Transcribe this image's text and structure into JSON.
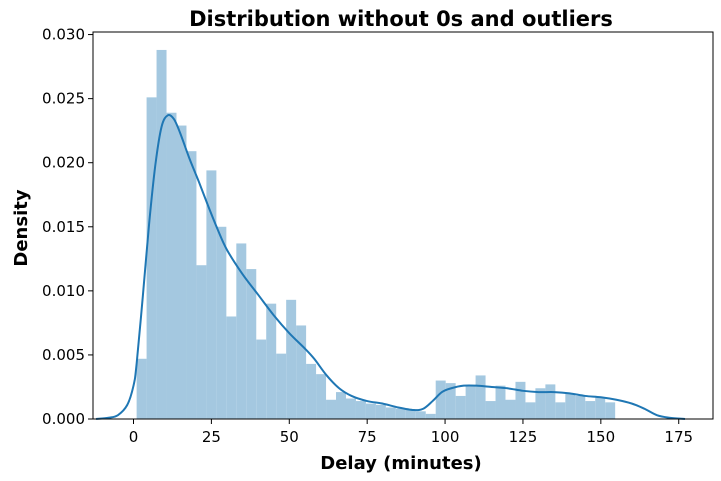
{
  "chart_data": {
    "type": "bar",
    "title": "Distribution without 0s and outliers",
    "xlabel": "Delay (minutes)",
    "ylabel": "Density",
    "xlim": [
      -13,
      186
    ],
    "ylim": [
      0,
      0.0302
    ],
    "x_ticks": [
      0,
      25,
      50,
      75,
      100,
      125,
      150,
      175
    ],
    "x_tick_labels": [
      "0",
      "25",
      "50",
      "75",
      "100",
      "125",
      "150",
      "175"
    ],
    "y_ticks": [
      0.0,
      0.005,
      0.01,
      0.015,
      0.02,
      0.025,
      0.03
    ],
    "y_tick_labels": [
      "0.000",
      "0.005",
      "0.010",
      "0.015",
      "0.020",
      "0.025",
      "0.030"
    ],
    "grid": false,
    "colors": {
      "histogram": "#a4c8e0",
      "kde": "#1f77b4",
      "axes": "#000000"
    },
    "series": [
      {
        "kind": "histogram",
        "bin_start": 1,
        "bin_width": 3.2,
        "values": [
          0.0047,
          0.0251,
          0.0288,
          0.0239,
          0.0229,
          0.0209,
          0.012,
          0.0194,
          0.015,
          0.008,
          0.0137,
          0.0117,
          0.0062,
          0.009,
          0.0051,
          0.0093,
          0.0073,
          0.0043,
          0.0035,
          0.0015,
          0.0021,
          0.0016,
          0.0014,
          0.0012,
          0.0011,
          0.0009,
          0.0008,
          0.0007,
          0.0006,
          0.0004,
          0.003,
          0.0028,
          0.0018,
          0.0026,
          0.0034,
          0.0014,
          0.0026,
          0.0015,
          0.0029,
          0.0013,
          0.0024,
          0.0027,
          0.0013,
          0.002,
          0.0018,
          0.0014,
          0.0017,
          0.0013
        ]
      },
      {
        "kind": "kde",
        "x": [
          -12,
          -8,
          -5,
          -2,
          0,
          1,
          3,
          5,
          7,
          9,
          11,
          13,
          15,
          18,
          21,
          24,
          27,
          30,
          35,
          40,
          45,
          50,
          55,
          58,
          62,
          66,
          70,
          75,
          80,
          85,
          90,
          93,
          96,
          99,
          102,
          106,
          110,
          115,
          120,
          125,
          130,
          135,
          140,
          145,
          150,
          155,
          160,
          164,
          168,
          172,
          177
        ],
        "y": [
          0.0,
          0.0001,
          0.0003,
          0.0011,
          0.0026,
          0.0043,
          0.0096,
          0.0152,
          0.0198,
          0.0228,
          0.0237,
          0.0234,
          0.0223,
          0.0203,
          0.0185,
          0.0166,
          0.0148,
          0.0132,
          0.0113,
          0.0097,
          0.0081,
          0.0067,
          0.0055,
          0.0047,
          0.0034,
          0.0024,
          0.0018,
          0.0014,
          0.0012,
          0.0009,
          0.0007,
          0.0008,
          0.0014,
          0.0021,
          0.0024,
          0.0026,
          0.0026,
          0.0025,
          0.0024,
          0.0022,
          0.0021,
          0.0021,
          0.002,
          0.0018,
          0.0017,
          0.0015,
          0.0012,
          0.0008,
          0.0003,
          0.0001,
          0.0
        ]
      }
    ]
  }
}
